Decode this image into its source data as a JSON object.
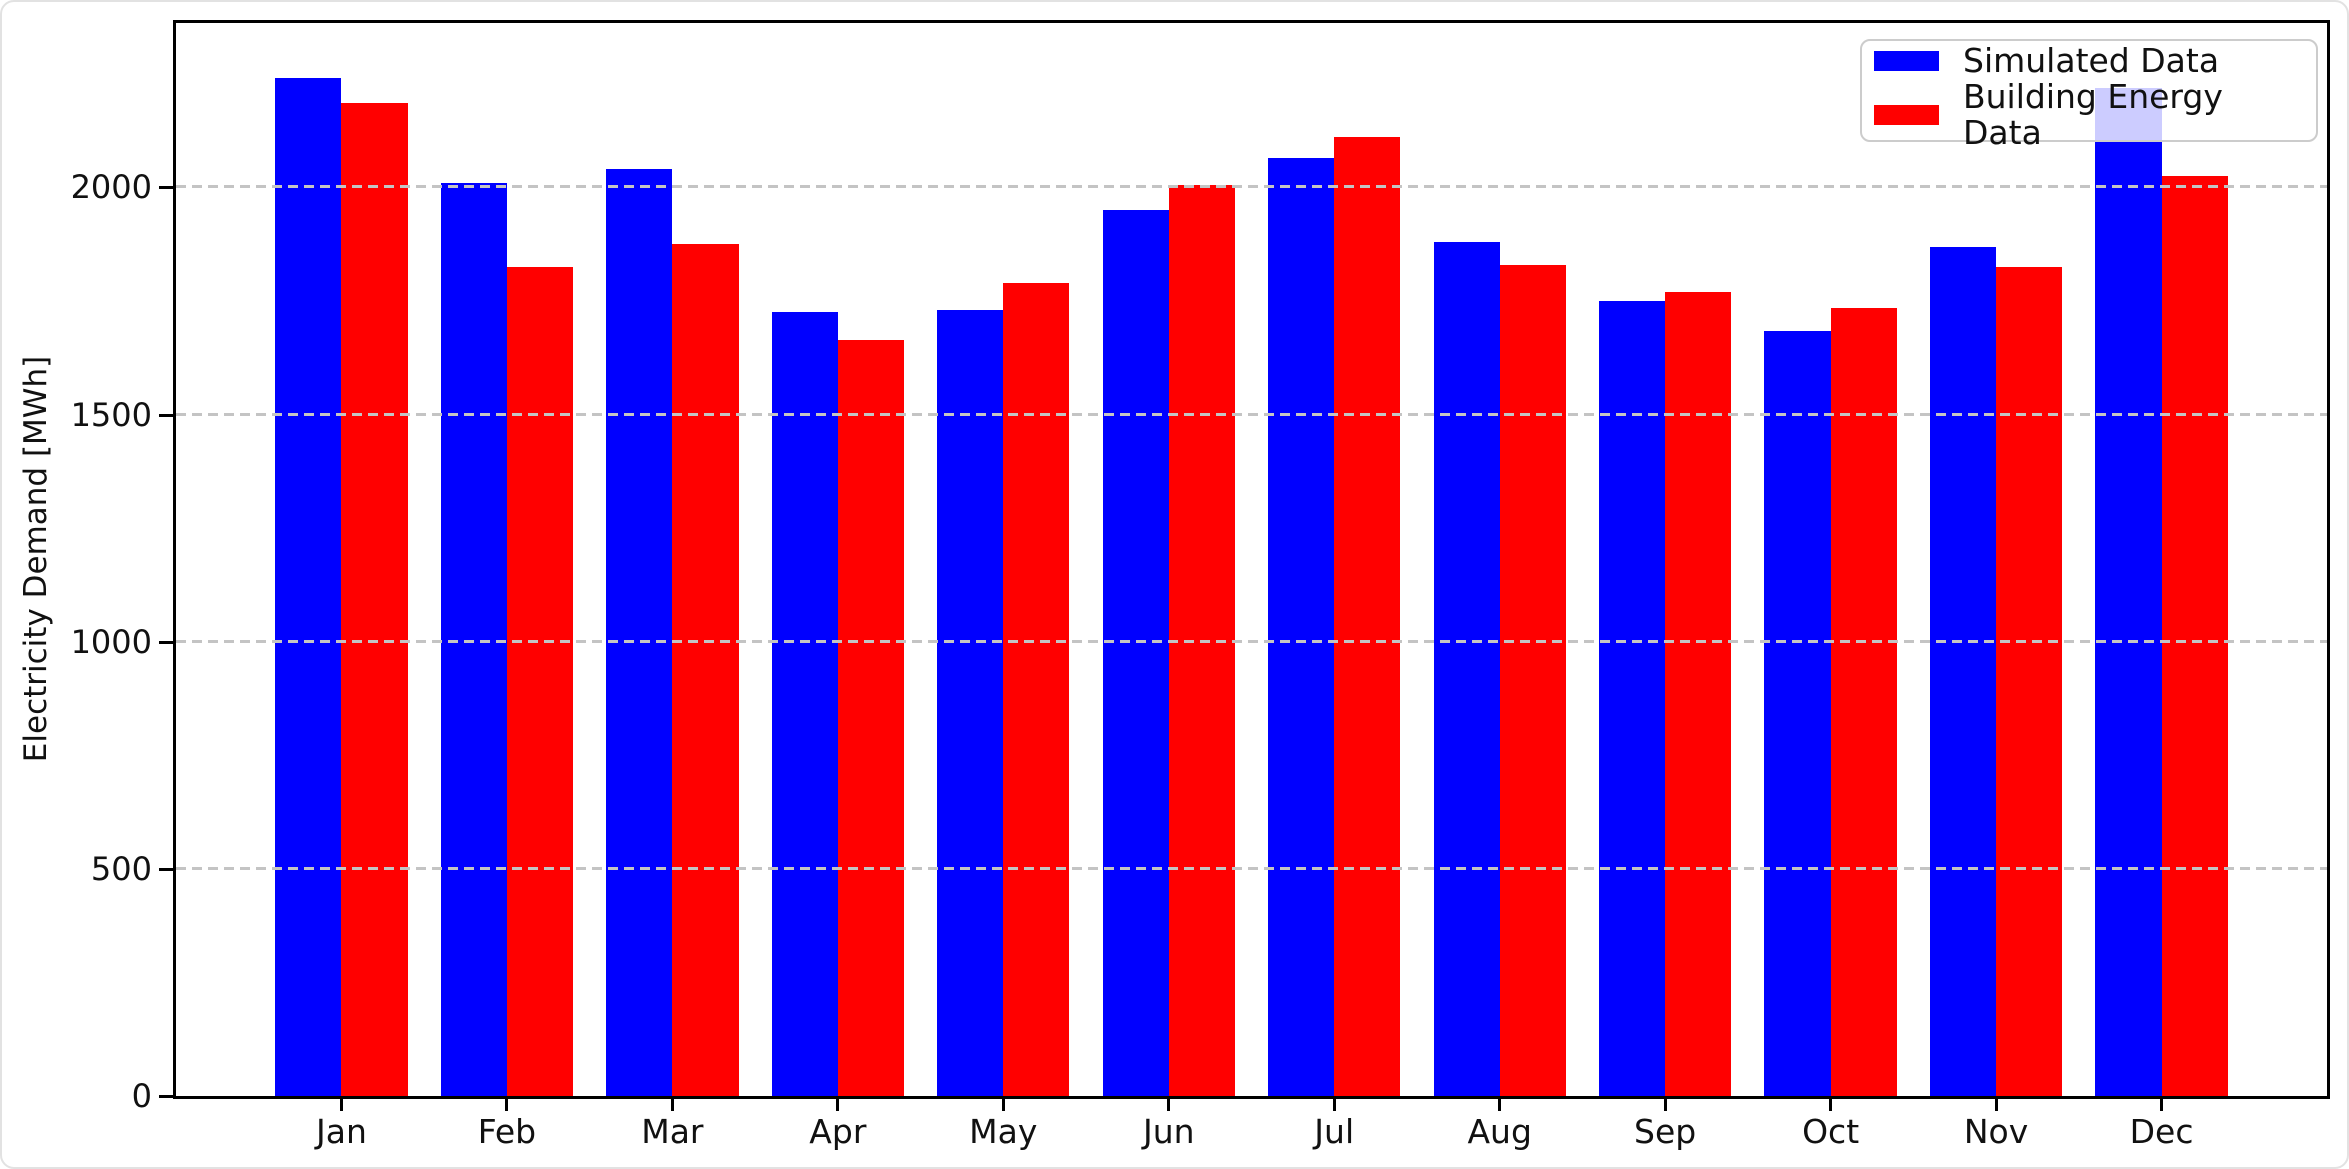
{
  "figure": {
    "ylabel": "Electricity Demand [MWh]"
  },
  "chart_data": {
    "type": "bar",
    "title": "",
    "xlabel": "",
    "ylabel": "Electricity Demand [MWh]",
    "categories": [
      "Jan",
      "Feb",
      "Mar",
      "Apr",
      "May",
      "Jun",
      "Jul",
      "Aug",
      "Sep",
      "Oct",
      "Nov",
      "Dec"
    ],
    "series": [
      {
        "name": "Simulated Data",
        "color": "#0000ff",
        "values": [
          2240,
          2010,
          2040,
          1725,
          1730,
          1950,
          2065,
          1880,
          1750,
          1685,
          1870,
          2220
        ]
      },
      {
        "name": "Building Energy Data",
        "color": "#ff0000",
        "values": [
          2185,
          1825,
          1875,
          1665,
          1790,
          2005,
          2110,
          1830,
          1770,
          1735,
          1825,
          2025
        ]
      }
    ],
    "yticks": [
      0,
      500,
      1000,
      1500,
      2000
    ],
    "ylim": [
      0,
      2362
    ],
    "bar_width_fraction": 0.4,
    "grid": "horizontal dashed, drawn over bars",
    "legend_position": "upper right",
    "colors": {
      "grid": "#c4c4c4",
      "spine": "#000000",
      "legend_edge": "#cccccc",
      "legend_face": "rgba(255,255,255,0.8)",
      "text": "#111111"
    }
  }
}
